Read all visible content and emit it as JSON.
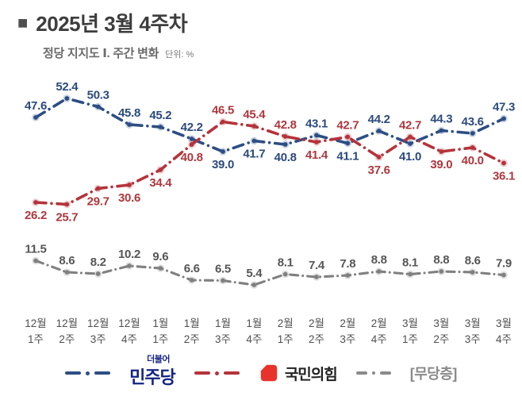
{
  "title": {
    "marker": "■",
    "text": "2025년 3월 4주차"
  },
  "subtitle": {
    "text": "정당 지지도 Ⅰ. 주간 변화",
    "unit": "단위: %"
  },
  "chart_data": {
    "type": "line",
    "title": "정당 지지도 Ⅰ. 주간 변화",
    "unit": "%",
    "categories": [
      "12월 1주",
      "12월 2주",
      "12월 3주",
      "12월 4주",
      "1월 1주",
      "1월 2주",
      "1월 3주",
      "1월 4주",
      "2월 1주",
      "2월 2주",
      "2월 3주",
      "2월 4주",
      "3월 1주",
      "3월 2주",
      "3월 3주",
      "3월 4주"
    ],
    "ylim": [
      0,
      60
    ],
    "grid": false,
    "legend_position": "bottom",
    "series": [
      {
        "key": "democratic",
        "name": "민주당",
        "color": "#2d4e84",
        "label_color": "#2b4a7c",
        "values": [
          47.6,
          52.4,
          50.3,
          45.8,
          45.2,
          42.2,
          39.0,
          41.7,
          40.8,
          43.1,
          41.1,
          44.2,
          41.0,
          44.3,
          43.6,
          47.3
        ],
        "label_side": [
          "above",
          "above",
          "above",
          "above",
          "above",
          "above",
          "below",
          "below",
          "below",
          "above",
          "below",
          "above",
          "below",
          "above",
          "above",
          "above"
        ]
      },
      {
        "key": "ppp",
        "name": "국민의힘",
        "color": "#b5333b",
        "label_color": "#ae383e",
        "values": [
          26.2,
          25.7,
          29.7,
          30.6,
          34.4,
          40.8,
          46.5,
          45.4,
          42.8,
          41.4,
          42.7,
          37.6,
          42.7,
          39.0,
          40.0,
          36.1
        ],
        "label_side": [
          "below",
          "below",
          "below",
          "below",
          "below",
          "below",
          "above",
          "above",
          "above",
          "below",
          "above",
          "below",
          "above",
          "below",
          "below",
          "below"
        ]
      },
      {
        "key": "independent",
        "name": "무당층",
        "color": "#808080",
        "label_color": "#565656",
        "values": [
          11.5,
          8.6,
          8.2,
          10.2,
          9.6,
          6.6,
          6.5,
          5.4,
          8.1,
          7.4,
          7.8,
          8.8,
          8.1,
          8.8,
          8.6,
          7.9
        ],
        "label_side": [
          "above",
          "above",
          "above",
          "above",
          "above",
          "above",
          "above",
          "above",
          "above",
          "above",
          "above",
          "above",
          "above",
          "above",
          "above",
          "above"
        ]
      }
    ]
  },
  "legend": {
    "democratic": {
      "prefix": "더불어",
      "label": "민주당",
      "text_color": "#152484",
      "line_color": "#2d4e84"
    },
    "ppp": {
      "label": "국민의힘",
      "icon_color": "#e8332d",
      "text_color": "#222222",
      "line_color": "#b5333b"
    },
    "independent": {
      "label": "[무당층]",
      "text_color": "#8a8a8a",
      "line_color": "#8a8a8a"
    }
  }
}
